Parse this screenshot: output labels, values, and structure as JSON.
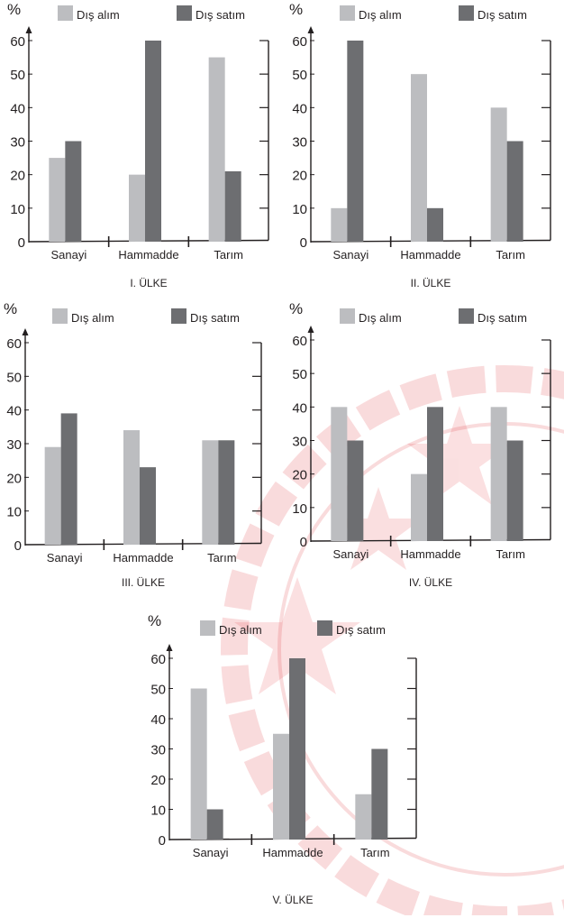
{
  "colors": {
    "dis_alim": "#bcbdc0",
    "dis_satim": "#6d6e71",
    "axis": "#231f20",
    "watermark": "#e0252c"
  },
  "watermark": {
    "name": "TÜRKİYE CUMHURİYETİ seal",
    "text": "CUMHURİYETİ"
  },
  "chart_data": [
    {
      "type": "bar",
      "title": "I. ÜLKE",
      "ylabel": "%",
      "ylim": [
        0,
        60
      ],
      "yticks": [
        "0",
        "10",
        "20",
        "30",
        "40",
        "50",
        "60"
      ],
      "categories": [
        "Sanayi",
        "Hammadde",
        "Tarım"
      ],
      "legend": "top",
      "series": [
        {
          "name": "Dış alım",
          "values": [
            25,
            20,
            55
          ]
        },
        {
          "name": "Dış satım",
          "values": [
            30,
            60,
            21
          ]
        }
      ]
    },
    {
      "type": "bar",
      "title": "II. ÜLKE",
      "ylabel": "%",
      "ylim": [
        0,
        60
      ],
      "yticks": [
        "0",
        "10",
        "20",
        "30",
        "40",
        "50",
        "60"
      ],
      "categories": [
        "Sanayi",
        "Hammadde",
        "Tarım"
      ],
      "legend": "top",
      "series": [
        {
          "name": "Dış alım",
          "values": [
            10,
            50,
            40
          ]
        },
        {
          "name": "Dış satım",
          "values": [
            60,
            10,
            30
          ]
        }
      ]
    },
    {
      "type": "bar",
      "title": "III. ÜLKE",
      "ylabel": "%",
      "ylim": [
        0,
        60
      ],
      "yticks": [
        "0",
        "10",
        "20",
        "30",
        "40",
        "50",
        "60"
      ],
      "categories": [
        "Sanayi",
        "Hammadde",
        "Tarım"
      ],
      "legend": "top",
      "series": [
        {
          "name": "Dış alım",
          "values": [
            29,
            34,
            31
          ]
        },
        {
          "name": "Dış satım",
          "values": [
            39,
            23,
            31
          ]
        }
      ]
    },
    {
      "type": "bar",
      "title": "IV. ÜLKE",
      "ylabel": "%",
      "ylim": [
        0,
        60
      ],
      "yticks": [
        "0",
        "10",
        "20",
        "30",
        "40",
        "50",
        "60"
      ],
      "categories": [
        "Sanayi",
        "Hammadde",
        "Tarım"
      ],
      "legend": "top",
      "series": [
        {
          "name": "Dış alım",
          "values": [
            40,
            20,
            40
          ]
        },
        {
          "name": "Dış satım",
          "values": [
            30,
            40,
            30
          ]
        }
      ]
    },
    {
      "type": "bar",
      "title": "V. ÜLKE",
      "ylabel": "%",
      "ylim": [
        0,
        60
      ],
      "yticks": [
        "0",
        "10",
        "20",
        "30",
        "40",
        "50",
        "60"
      ],
      "categories": [
        "Sanayi",
        "Hammadde",
        "Tarım"
      ],
      "legend": "top",
      "series": [
        {
          "name": "Dış alım",
          "values": [
            50,
            35,
            15
          ]
        },
        {
          "name": "Dış satım",
          "values": [
            10,
            60,
            30
          ]
        }
      ]
    }
  ]
}
